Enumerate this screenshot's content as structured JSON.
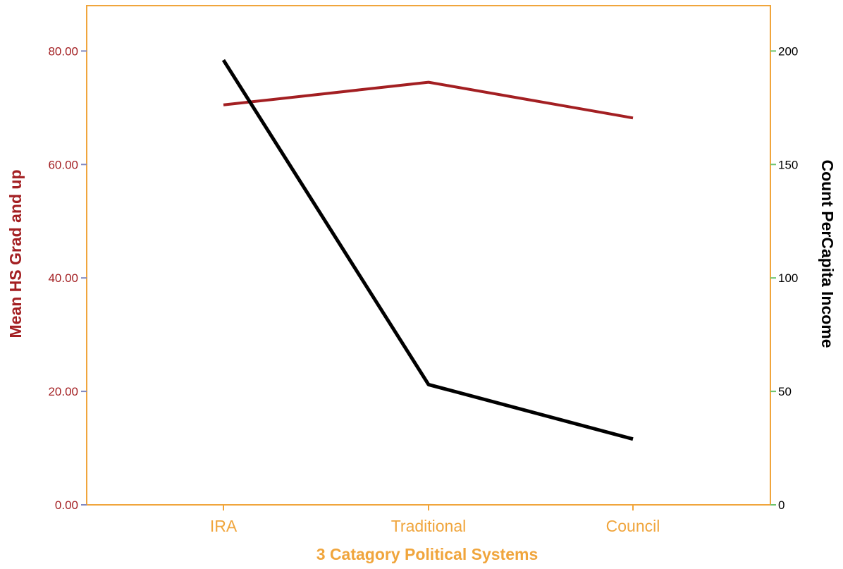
{
  "chart_data": {
    "type": "line",
    "title": "",
    "xlabel": "3 Catagory Political Systems",
    "ylabel": "Mean HS Grad and up",
    "y2label": "Count PerCapita Income",
    "categories": [
      "IRA",
      "Traditional",
      "Council"
    ],
    "ylim": [
      0,
      88
    ],
    "y2lim": [
      0,
      220
    ],
    "y_ticks": [
      "0.00",
      "20.00",
      "40.00",
      "60.00",
      "80.00"
    ],
    "y2_ticks": [
      "0",
      "50",
      "100",
      "150",
      "200"
    ],
    "grid": false,
    "legend": "none",
    "series": [
      {
        "axis": "left",
        "color": "#a31f22",
        "values": [
          70.5,
          74.5,
          68.2
        ]
      },
      {
        "axis": "right",
        "color": "#000000",
        "values": [
          196,
          53,
          29
        ]
      }
    ],
    "colors": {
      "frame": "#f0a53c",
      "left_axis_text": "#a31f22",
      "right_axis_text": "#000000",
      "x_axis_text": "#f0a53c",
      "left_tick_mark": "#8088c0",
      "right_tick_mark": "#6cc46c"
    }
  }
}
